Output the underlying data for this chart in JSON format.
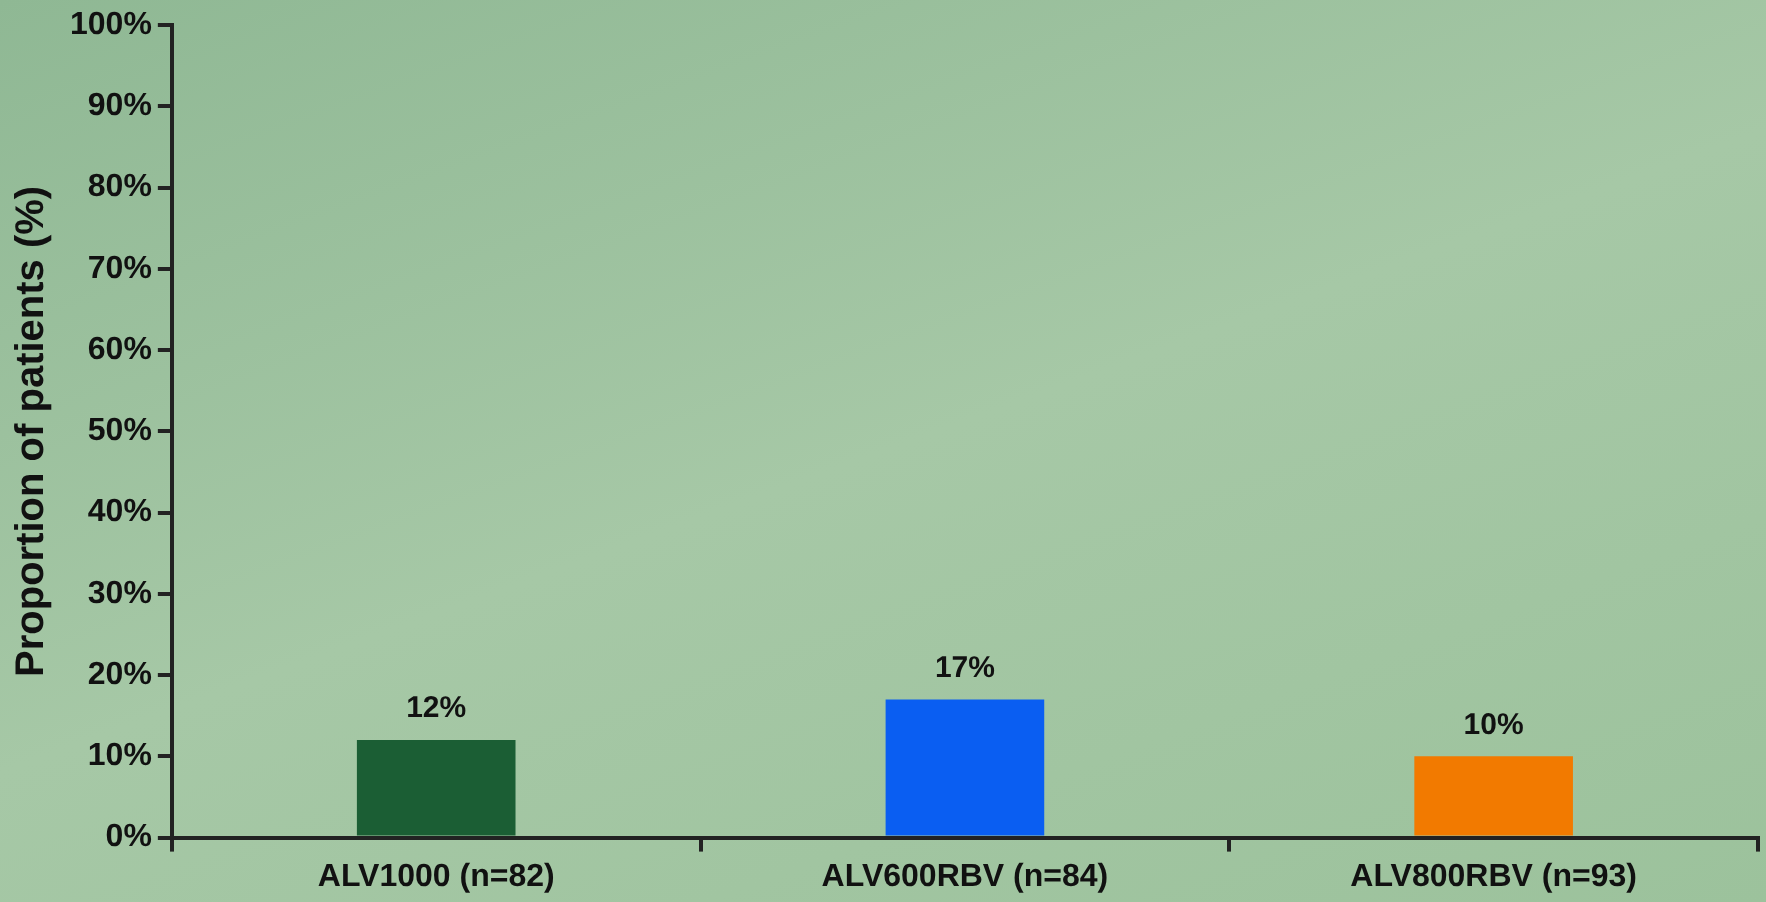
{
  "chart_data": {
    "type": "bar",
    "ylabel": "Proportion of patients (%)",
    "categories": [
      "ALV1000 (n=82)",
      "ALV600RBV (n=84)",
      "ALV800RBV (n=93)"
    ],
    "values": [
      12,
      17,
      10
    ],
    "colors": [
      "#1b5e34",
      "#0a5ef2",
      "#f27a00"
    ],
    "value_labels": [
      "12%",
      "17%",
      "10%"
    ],
    "ylim": [
      0,
      100
    ],
    "yticks": [
      {
        "value": 0,
        "label": "0%"
      },
      {
        "value": 10,
        "label": "10%"
      },
      {
        "value": 20,
        "label": "20%"
      },
      {
        "value": 30,
        "label": "30%"
      },
      {
        "value": 40,
        "label": "40%"
      },
      {
        "value": 50,
        "label": "50%"
      },
      {
        "value": 60,
        "label": "60%"
      },
      {
        "value": 70,
        "label": "70%"
      },
      {
        "value": 80,
        "label": "80%"
      },
      {
        "value": 90,
        "label": "90%"
      },
      {
        "value": 100,
        "label": "100%"
      }
    ],
    "grid": false,
    "legend": false
  }
}
